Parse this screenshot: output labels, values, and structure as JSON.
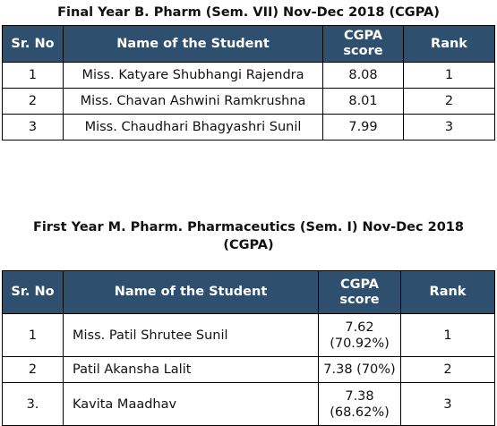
{
  "section1": {
    "title": "Final Year B. Pharm (Sem. VII) Nov-Dec 2018 (CGPA)",
    "headers": {
      "sr_no": "Sr. No",
      "name": "Name of the Student",
      "cgpa_line1": "CGPA",
      "cgpa_line2": "score",
      "rank": "Rank"
    },
    "rows": [
      {
        "sr": "1",
        "name": "Miss. Katyare Shubhangi Rajendra",
        "score": "8.08",
        "rank": "1"
      },
      {
        "sr": "2",
        "name": "Miss. Chavan Ashwini Ramkrushna",
        "score": "8.01",
        "rank": "2"
      },
      {
        "sr": "3",
        "name": "Miss. Chaudhari Bhagyashri Sunil",
        "score": "7.99",
        "rank": "3"
      }
    ]
  },
  "section2": {
    "title_line1": "First Year M. Pharm. Pharmaceutics (Sem. I) Nov-Dec 2018",
    "title_line2": "(CGPA)",
    "headers": {
      "sr_no": "Sr. No",
      "name": "Name of the Student",
      "cgpa_line1": "CGPA",
      "cgpa_line2": "score",
      "rank": "Rank"
    },
    "rows": [
      {
        "sr": "1",
        "name": "Miss. Patil Shrutee Sunil",
        "score_line1": "7.62",
        "score_line2": "(70.92%)",
        "rank": "1"
      },
      {
        "sr": "2",
        "name": "Patil Akansha Lalit",
        "score_line1": "7.38 (70%)",
        "rank": "2"
      },
      {
        "sr": "3.",
        "name": "Kavita Maadhav",
        "score_line1": "7.38",
        "score_line2": "(68.62%)",
        "rank": "3"
      }
    ]
  },
  "colors": {
    "header_bg": "#2f4f6e",
    "header_text": "#ffffff",
    "border": "#000000"
  }
}
